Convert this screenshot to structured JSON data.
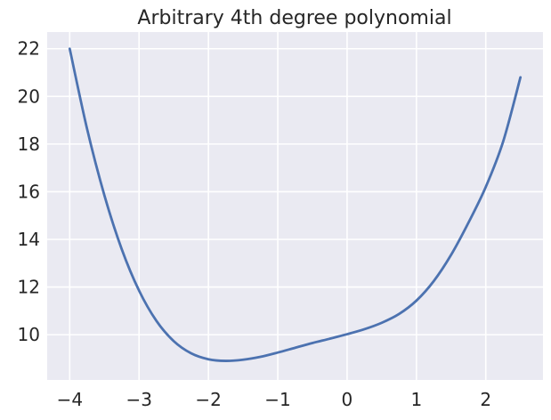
{
  "chart_data": {
    "type": "line",
    "title": "Arbitrary 4th degree polynomial",
    "xlabel": "",
    "ylabel": "",
    "xlim": [
      -4.325,
      2.825
    ],
    "ylim": [
      8.1,
      22.7
    ],
    "grid": true,
    "legend": "none",
    "x_ticks": [
      {
        "value": -4,
        "label": "−4"
      },
      {
        "value": -3,
        "label": "−3"
      },
      {
        "value": -2,
        "label": "−2"
      },
      {
        "value": -1,
        "label": "−1"
      },
      {
        "value": 0,
        "label": "0"
      },
      {
        "value": 1,
        "label": "1"
      },
      {
        "value": 2,
        "label": "2"
      }
    ],
    "y_ticks": [
      {
        "value": 10,
        "label": "10"
      },
      {
        "value": 12,
        "label": "12"
      },
      {
        "value": 14,
        "label": "14"
      },
      {
        "value": 16,
        "label": "16"
      },
      {
        "value": 18,
        "label": "18"
      },
      {
        "value": 20,
        "label": "20"
      },
      {
        "value": 22,
        "label": "22"
      }
    ],
    "series": [
      {
        "name": "",
        "color": "#4c72b0",
        "x": [
          -4.0,
          -3.75,
          -3.5,
          -3.25,
          -3.0,
          -2.75,
          -2.5,
          -2.25,
          -2.0,
          -1.75,
          -1.5,
          -1.25,
          -1.0,
          -0.75,
          -0.5,
          -0.25,
          0.0,
          0.25,
          0.5,
          0.75,
          1.0,
          1.25,
          1.5,
          1.75,
          2.0,
          2.25,
          2.5
        ],
        "y": [
          22.0,
          18.64,
          15.85,
          13.59,
          11.85,
          10.58,
          9.73,
          9.22,
          8.97,
          8.9,
          8.95,
          9.07,
          9.25,
          9.45,
          9.65,
          9.83,
          10.02,
          10.23,
          10.5,
          10.87,
          11.43,
          12.25,
          13.35,
          14.7,
          16.2,
          18.1,
          20.8
        ]
      }
    ]
  }
}
